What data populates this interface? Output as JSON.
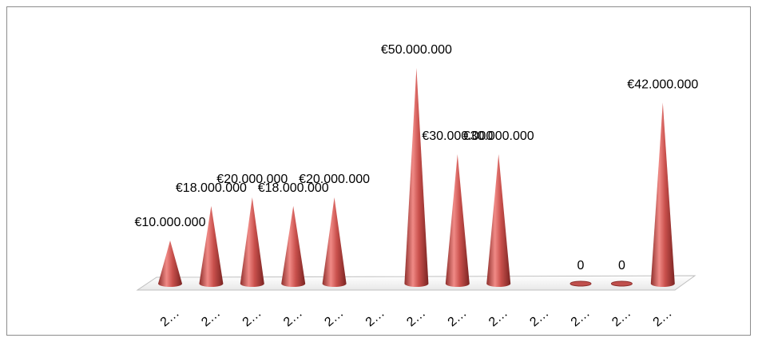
{
  "chart_data": {
    "type": "cone",
    "categories": [
      "2…",
      "2…",
      "2…",
      "2…",
      "2…",
      "2…",
      "2…",
      "2…",
      "2…",
      "2…",
      "2…",
      "2…",
      "2…"
    ],
    "values": [
      10000000,
      18000000,
      20000000,
      18000000,
      20000000,
      null,
      50000000,
      30000000,
      30000000,
      null,
      0,
      0,
      42000000
    ],
    "value_labels": [
      "€10.000.000",
      "€18.000.000",
      "€20.000.000",
      "€18.000.000",
      "€20.000.000",
      null,
      "€50.000.000",
      "€30.000.000",
      "€30.000.000",
      null,
      "0",
      "0",
      "€42.000.000"
    ],
    "color": "#c0504d"
  }
}
